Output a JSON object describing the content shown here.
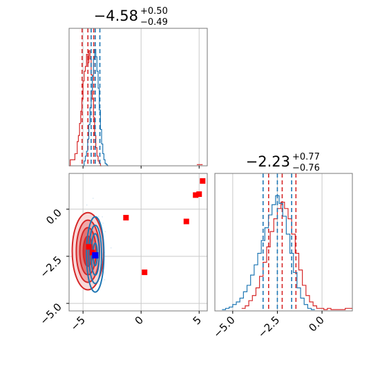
{
  "chart_data": [
    {
      "type": "histogram",
      "panel": "top-left marginal",
      "title": {
        "main": "−4.58",
        "sup": "+0.50",
        "sub": "−0.49"
      },
      "xlim": [
        -6.2,
        5.7
      ],
      "x_ticks": [
        -5,
        0,
        5
      ],
      "grid": true,
      "series": [
        {
          "color": "#d62728",
          "quantiles": [
            -5.08,
            -4.58,
            -4.08
          ],
          "bins": [
            [
              -6.2,
              -6.1,
              0.0
            ],
            [
              -6.1,
              -6.0,
              0.05
            ],
            [
              -6.0,
              -5.9,
              0.05
            ],
            [
              -5.9,
              -5.8,
              0.05
            ],
            [
              -5.8,
              -5.7,
              0.05
            ],
            [
              -5.7,
              -5.6,
              0.1
            ],
            [
              -5.6,
              -5.5,
              0.1
            ],
            [
              -5.5,
              -5.4,
              0.2
            ],
            [
              -5.4,
              -5.3,
              0.25
            ],
            [
              -5.3,
              -5.2,
              0.35
            ],
            [
              -5.2,
              -5.1,
              0.45
            ],
            [
              -5.1,
              -5.0,
              0.55
            ],
            [
              -5.0,
              -4.9,
              0.7
            ],
            [
              -4.9,
              -4.8,
              0.78
            ],
            [
              -4.8,
              -4.7,
              0.82
            ],
            [
              -4.7,
              -4.6,
              0.92
            ],
            [
              -4.6,
              -4.5,
              0.85
            ],
            [
              -4.5,
              -4.4,
              0.95
            ],
            [
              -4.4,
              -4.3,
              0.88
            ],
            [
              -4.3,
              -4.2,
              0.75
            ],
            [
              -4.2,
              -4.1,
              0.55
            ],
            [
              -4.1,
              -4.0,
              0.4
            ],
            [
              -4.0,
              -3.9,
              0.25
            ],
            [
              -3.9,
              -3.8,
              0.15
            ],
            [
              -3.8,
              -3.7,
              0.08
            ],
            [
              -3.7,
              -3.6,
              0.04
            ],
            [
              -3.6,
              -3.5,
              0.02
            ],
            [
              -3.5,
              -3.4,
              0.0
            ]
          ],
          "outlier_bins": [
            [
              4.8,
              5.1,
              0.01
            ],
            [
              5.1,
              5.3,
              0.01
            ]
          ]
        },
        {
          "color": "#1f77b4",
          "quantiles": [
            -4.3,
            -3.95,
            -3.55
          ],
          "bins": [
            [
              -5.0,
              -4.9,
              0.0
            ],
            [
              -4.9,
              -4.8,
              0.04
            ],
            [
              -4.8,
              -4.7,
              0.08
            ],
            [
              -4.7,
              -4.6,
              0.12
            ],
            [
              -4.6,
              -4.5,
              0.22
            ],
            [
              -4.5,
              -4.4,
              0.34
            ],
            [
              -4.4,
              -4.3,
              0.48
            ],
            [
              -4.3,
              -4.2,
              0.62
            ],
            [
              -4.2,
              -4.1,
              0.74
            ],
            [
              -4.1,
              -4.0,
              0.88
            ],
            [
              -4.0,
              -3.9,
              0.96
            ],
            [
              -3.9,
              -3.8,
              0.9
            ],
            [
              -3.8,
              -3.7,
              0.78
            ],
            [
              -3.7,
              -3.6,
              0.64
            ],
            [
              -3.6,
              -3.5,
              0.46
            ],
            [
              -3.5,
              -3.4,
              0.3
            ],
            [
              -3.4,
              -3.3,
              0.18
            ],
            [
              -3.3,
              -3.2,
              0.1
            ],
            [
              -3.2,
              -3.1,
              0.05
            ],
            [
              -3.1,
              -3.0,
              0.02
            ],
            [
              -3.0,
              -2.9,
              0.01
            ],
            [
              -2.9,
              -2.8,
              0.0
            ]
          ]
        }
      ]
    },
    {
      "type": "scatter",
      "panel": "bottom-left joint",
      "xlim": [
        -6.2,
        5.7
      ],
      "ylim": [
        -5.4,
        1.9
      ],
      "x_ticks": [
        -5,
        0,
        5
      ],
      "x_tick_labels": [
        "−5",
        "0",
        "5"
      ],
      "y_ticks": [
        0.0,
        -2.5,
        -5.0
      ],
      "y_tick_labels": [
        "0.0",
        "−2.5",
        "−5.0"
      ],
      "grid": true,
      "red_contours": [
        {
          "cx": -4.58,
          "cy": -2.23,
          "rx": 1.35,
          "ry": 2.05
        },
        {
          "cx": -4.58,
          "cy": -2.23,
          "rx": 1.0,
          "ry": 1.65
        },
        {
          "cx": -4.58,
          "cy": -2.23,
          "rx": 0.7,
          "ry": 1.25
        },
        {
          "cx": -4.58,
          "cy": -2.23,
          "rx": 0.4,
          "ry": 0.8
        }
      ],
      "blue_contours": [
        {
          "cx": -3.95,
          "cy": -2.4,
          "rx": 0.75,
          "ry": 2.0
        },
        {
          "cx": -3.95,
          "cy": -2.4,
          "rx": 0.55,
          "ry": 1.55
        },
        {
          "cx": -3.95,
          "cy": -2.4,
          "rx": 0.35,
          "ry": 1.1
        },
        {
          "cx": -3.95,
          "cy": -2.4,
          "rx": 0.18,
          "ry": 0.6
        }
      ],
      "red_points": [
        [
          5.3,
          1.5
        ],
        [
          5.0,
          0.8
        ],
        [
          4.7,
          0.75
        ],
        [
          -1.3,
          -0.45
        ],
        [
          3.9,
          -0.65
        ],
        [
          0.3,
          -3.35
        ],
        [
          -4.5,
          -2.0
        ],
        [
          -4.2,
          -2.3
        ]
      ],
      "blue_points": [
        [
          -3.95,
          -2.45
        ]
      ]
    },
    {
      "type": "histogram",
      "panel": "bottom-right marginal",
      "title": {
        "main": "−2.23",
        "sup": "+0.77",
        "sub": "−0.76"
      },
      "xlim": [
        -6.0,
        1.7
      ],
      "x_ticks": [
        -5.0,
        -2.5,
        0.0
      ],
      "x_tick_labels": [
        "−5.0",
        "−2.5",
        "0.0"
      ],
      "grid": true,
      "series": [
        {
          "color": "#d62728",
          "quantiles": [
            -2.99,
            -2.23,
            -1.46
          ],
          "bins": [
            [
              -4.5,
              -4.3,
              0.02
            ],
            [
              -4.3,
              -4.1,
              0.04
            ],
            [
              -4.1,
              -3.9,
              0.08
            ],
            [
              -3.9,
              -3.7,
              0.12
            ],
            [
              -3.7,
              -3.5,
              0.18
            ],
            [
              -3.5,
              -3.3,
              0.27
            ],
            [
              -3.3,
              -3.1,
              0.38
            ],
            [
              -3.1,
              -2.9,
              0.5
            ],
            [
              -2.9,
              -2.7,
              0.62
            ],
            [
              -2.7,
              -2.5,
              0.72
            ],
            [
              -2.5,
              -2.3,
              0.8
            ],
            [
              -2.3,
              -2.1,
              0.85
            ],
            [
              -2.1,
              -1.9,
              0.8
            ],
            [
              -1.9,
              -1.7,
              0.72
            ],
            [
              -1.7,
              -1.5,
              0.6
            ],
            [
              -1.5,
              -1.3,
              0.45
            ],
            [
              -1.3,
              -1.1,
              0.32
            ],
            [
              -1.1,
              -0.9,
              0.2
            ],
            [
              -0.9,
              -0.7,
              0.12
            ],
            [
              -0.7,
              -0.5,
              0.07
            ],
            [
              -0.5,
              -0.3,
              0.04
            ],
            [
              -0.3,
              -0.1,
              0.02
            ],
            [
              -0.1,
              0.1,
              0.02
            ],
            [
              0.1,
              0.3,
              0.01
            ],
            [
              0.3,
              0.5,
              0.02
            ],
            [
              0.5,
              0.9,
              0.01
            ],
            [
              0.9,
              1.3,
              0.01
            ],
            [
              1.3,
              1.7,
              0.02
            ]
          ]
        },
        {
          "color": "#1f77b4",
          "quantiles": [
            -3.3,
            -2.5,
            -1.7
          ],
          "bins": [
            [
              -5.6,
              -5.4,
              0.01
            ],
            [
              -5.4,
              -5.2,
              0.02
            ],
            [
              -5.2,
              -5.0,
              0.03
            ],
            [
              -5.0,
              -4.8,
              0.05
            ],
            [
              -4.8,
              -4.6,
              0.07
            ],
            [
              -4.6,
              -4.4,
              0.1
            ],
            [
              -4.4,
              -4.2,
              0.15
            ],
            [
              -4.2,
              -4.0,
              0.2
            ],
            [
              -4.0,
              -3.8,
              0.28
            ],
            [
              -3.8,
              -3.6,
              0.36
            ],
            [
              -3.6,
              -3.4,
              0.45
            ],
            [
              -3.4,
              -3.2,
              0.55
            ],
            [
              -3.2,
              -3.0,
              0.65
            ],
            [
              -3.0,
              -2.8,
              0.75
            ],
            [
              -2.8,
              -2.6,
              0.83
            ],
            [
              -2.6,
              -2.4,
              0.9
            ],
            [
              -2.4,
              -2.2,
              0.84
            ],
            [
              -2.2,
              -2.0,
              0.74
            ],
            [
              -2.0,
              -1.8,
              0.6
            ],
            [
              -1.8,
              -1.6,
              0.45
            ],
            [
              -1.6,
              -1.4,
              0.3
            ],
            [
              -1.4,
              -1.2,
              0.18
            ],
            [
              -1.2,
              -1.0,
              0.1
            ],
            [
              -1.0,
              -0.8,
              0.05
            ],
            [
              -0.8,
              -0.6,
              0.02
            ],
            [
              -0.6,
              -0.4,
              0.01
            ]
          ]
        }
      ]
    }
  ]
}
